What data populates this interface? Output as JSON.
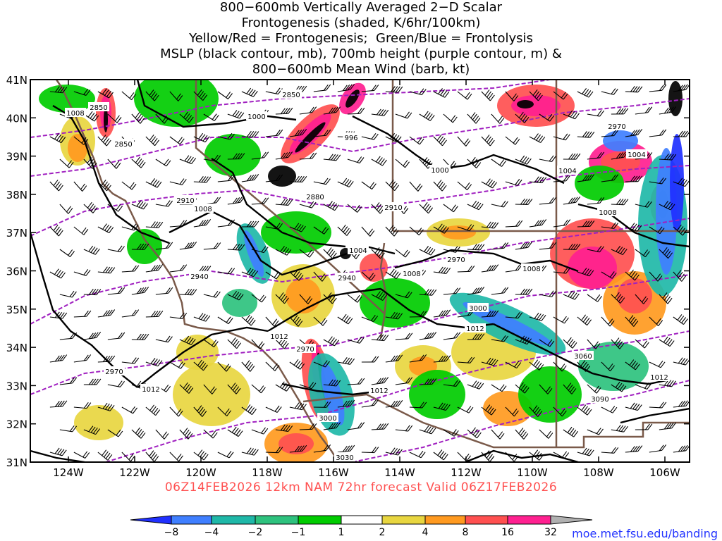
{
  "title_lines": [
    "800−600mb Vertically Averaged 2−D Scalar",
    "Frontogenesis (shaded, K/6hr/100km)",
    "Yellow/Red = Frontogenesis;  Green/Blue = Frontolysis",
    "MSLP (black contour, mb), 700mb height (purple contour, m) &",
    "800−600mb Mean Wind (barb, kt)"
  ],
  "footer": "06Z14FEB2026 12km NAM 72hr forecast Valid 06Z17FEB2026",
  "credit": "moe.met.fsu.edu/banding",
  "colors": {
    "coast": "#7a5a4a",
    "isobar": "#000000",
    "height": "#a020c0",
    "frontogenesis": [
      "#e8d640",
      "#ff9a20",
      "#ff5050",
      "#ff2090",
      "#000000",
      "#b0b0b0"
    ],
    "frontolysis": [
      "#00cc00",
      "#2ec27e",
      "#1fb8a8",
      "#3f7fff",
      "#2030ff"
    ]
  },
  "chart_data": {
    "type": "map",
    "lon_ticks": [
      "124W",
      "122W",
      "120W",
      "118W",
      "116W",
      "114W",
      "112W",
      "110W",
      "108W",
      "106W"
    ],
    "lat_ticks": [
      "41N",
      "40N",
      "39N",
      "38N",
      "37N",
      "36N",
      "35N",
      "34N",
      "33N",
      "32N",
      "31N"
    ],
    "colorbar_levels": [
      "−8",
      "−4",
      "−2",
      "−1",
      "1",
      "2",
      "4",
      "8",
      "16",
      "32"
    ],
    "mslp_labels": [
      "1008",
      "1000",
      "996",
      "1000",
      "1004",
      "1008",
      "1004",
      "1008",
      "1008",
      "1004",
      "1012",
      "1012",
      "1012",
      "1012",
      "1008",
      "1012"
    ],
    "height_labels": [
      "2850",
      "2850",
      "2850",
      "2880",
      "2910",
      "2910",
      "2940",
      "2940",
      "2970",
      "2970",
      "2970",
      "2970",
      "3000",
      "3000",
      "3030",
      "3060",
      "3090"
    ]
  }
}
